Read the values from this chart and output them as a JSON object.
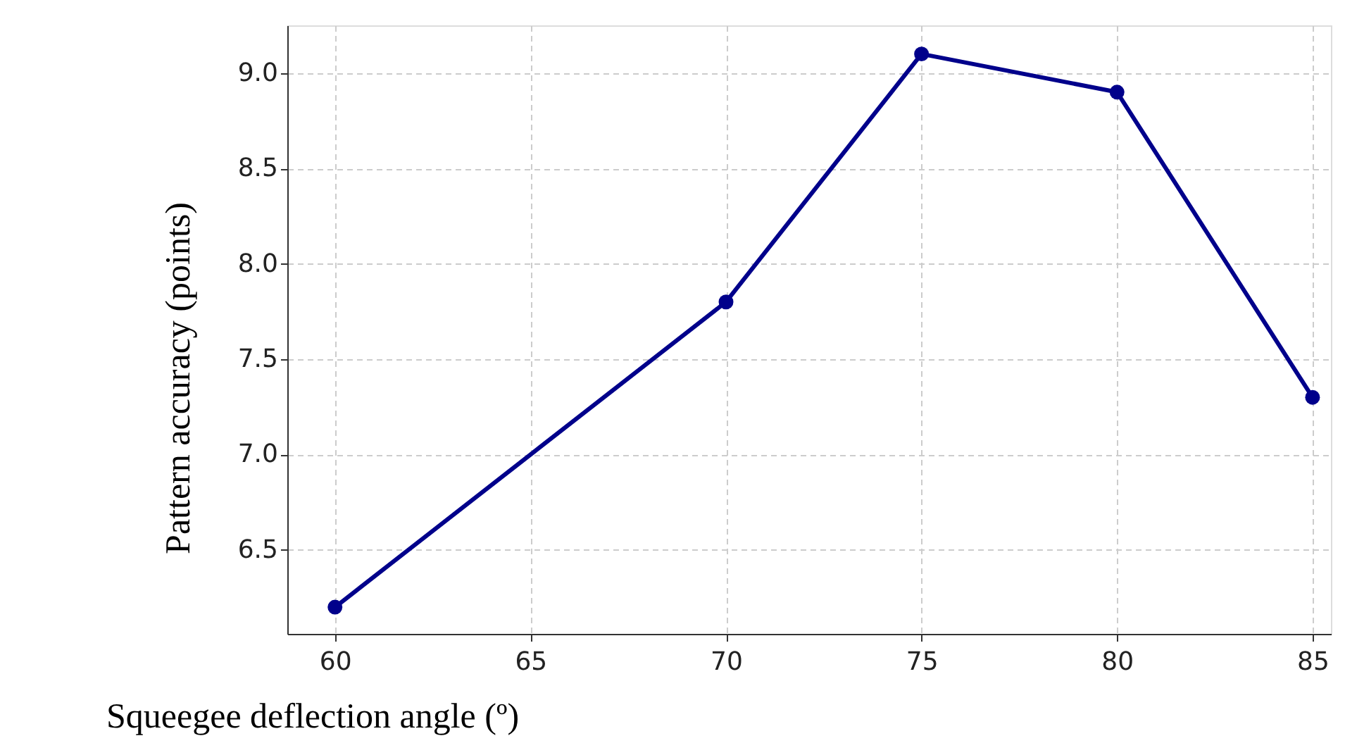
{
  "chart_data": {
    "type": "line",
    "xlabel": "Squeegee deflection angle (º)",
    "ylabel": "Pattern accuracy (points)",
    "x": [
      60,
      70,
      75,
      80,
      85
    ],
    "series": [
      {
        "color": "#00008b",
        "values": [
          6.2,
          7.8,
          9.1,
          8.9,
          7.3
        ]
      }
    ],
    "xlim": [
      58.78,
      85.47
    ],
    "xticks": [
      60,
      65,
      70,
      75,
      80,
      85
    ],
    "ylim": [
      6.06,
      9.25
    ],
    "yticks": [
      {
        "value": 6.5,
        "label": "6.5"
      },
      {
        "value": 7.0,
        "label": "7.0"
      },
      {
        "value": 7.5,
        "label": "7.5"
      },
      {
        "value": 8.0,
        "label": "8.0"
      },
      {
        "value": 8.5,
        "label": "8.5"
      },
      {
        "value": 9.0,
        "label": "9.0"
      }
    ],
    "grid": true,
    "marker": "circle",
    "line_style": "solid"
  }
}
